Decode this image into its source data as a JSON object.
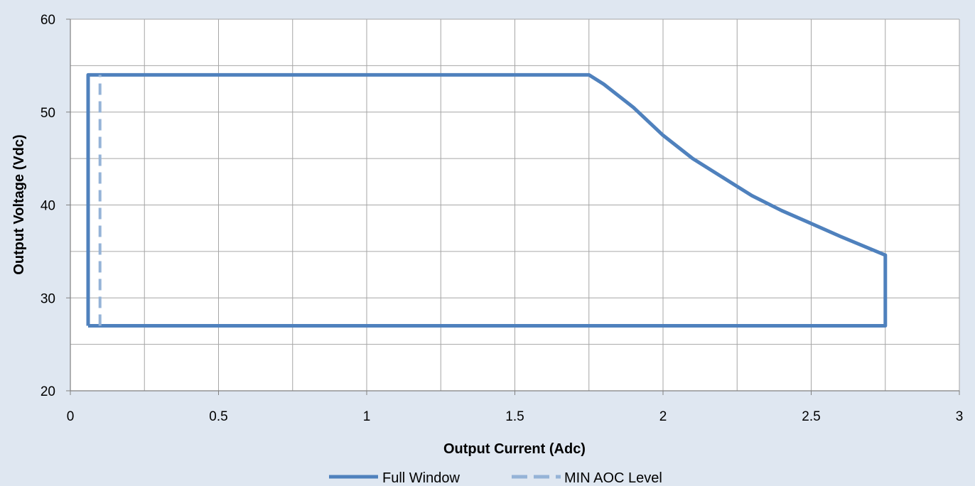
{
  "chart_data": {
    "type": "line",
    "title": "",
    "xlabel": "Output Current (Adc)",
    "ylabel": "Output Voltage (Vdc)",
    "xlim": [
      0,
      3
    ],
    "ylim": [
      20,
      60
    ],
    "x_ticks": [
      0,
      0.5,
      1,
      1.5,
      2,
      2.5,
      3
    ],
    "x_tick_labels": [
      "0",
      "0.5",
      "1",
      "1.5",
      "2",
      "2.5",
      "3"
    ],
    "y_ticks": [
      20,
      30,
      40,
      50,
      60
    ],
    "y_tick_labels": [
      "20",
      "30",
      "40",
      "50",
      "60"
    ],
    "x_minor_step": 0.25,
    "y_minor_step": 5,
    "grid": true,
    "legend_position": "bottom",
    "series": [
      {
        "name": "Full Window",
        "color": "#4f81bd",
        "style": "solid",
        "points": [
          [
            0.06,
            27.0
          ],
          [
            0.06,
            54.0
          ],
          [
            1.75,
            54.0
          ],
          [
            1.8,
            53.0
          ],
          [
            1.9,
            50.5
          ],
          [
            2.0,
            47.5
          ],
          [
            2.1,
            45.0
          ],
          [
            2.2,
            43.0
          ],
          [
            2.3,
            41.0
          ],
          [
            2.4,
            39.4
          ],
          [
            2.5,
            38.0
          ],
          [
            2.6,
            36.6
          ],
          [
            2.75,
            34.6
          ],
          [
            2.75,
            27.0
          ],
          [
            0.06,
            27.0
          ]
        ]
      },
      {
        "name": "MIN AOC Level",
        "color": "#95b3d7",
        "style": "dashed",
        "points": [
          [
            0.1,
            27.0
          ],
          [
            0.1,
            54.0
          ]
        ]
      }
    ]
  }
}
